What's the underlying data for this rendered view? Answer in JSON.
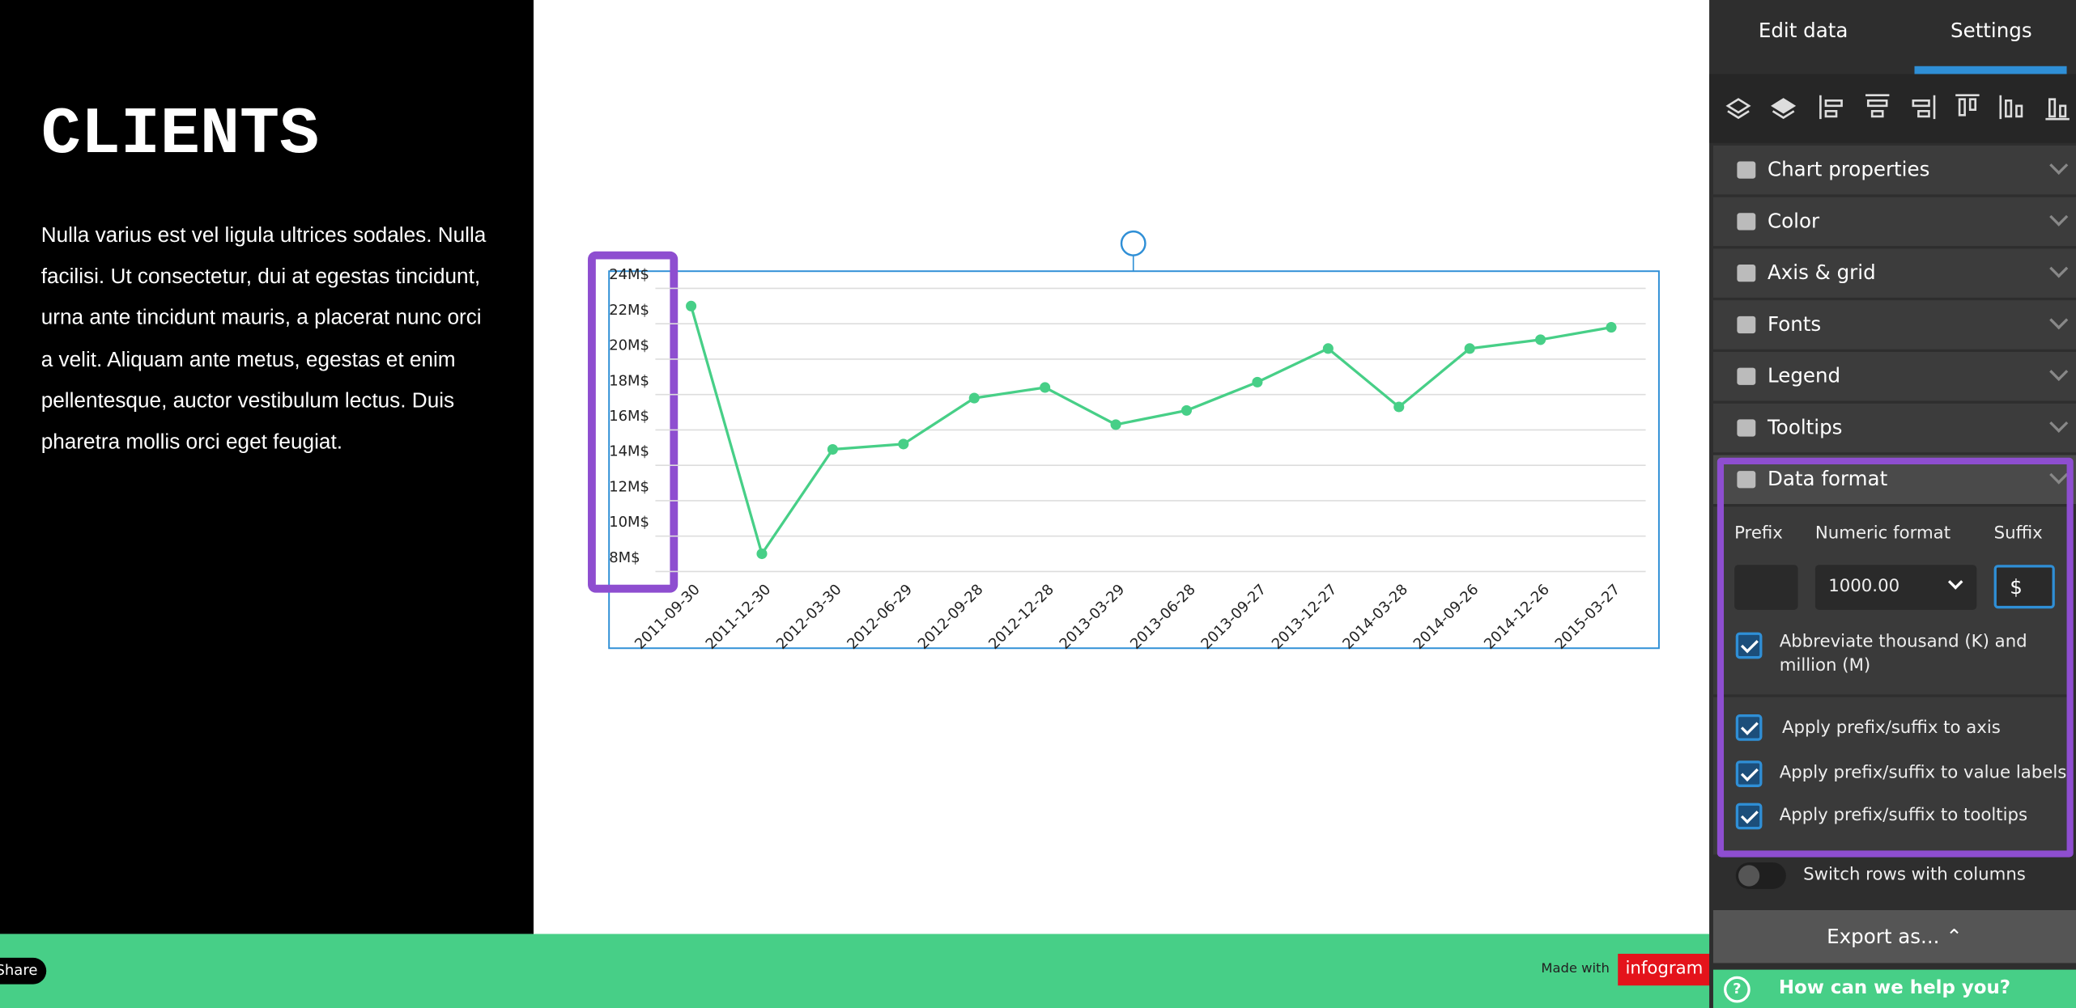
{
  "left_panel": {
    "title": "CLIENTS",
    "body": "Nulla varius est vel ligula ultrices sodales. Nulla facilisi. Ut consectetur, dui at egestas tincidunt, urna ante tincidunt mauris, a placerat nunc orci a velit. Aliquam ante metus, egestas et enim pellentesque, auctor vestibulum lectus. Duis pharetra mollis orci eget feugiat."
  },
  "chart_data": {
    "type": "line",
    "categories": [
      "2011-09-30",
      "2011-12-30",
      "2012-03-30",
      "2012-06-29",
      "2012-09-28",
      "2012-12-28",
      "2013-03-29",
      "2013-06-28",
      "2013-09-27",
      "2013-12-27",
      "2014-03-28",
      "2014-09-26",
      "2014-12-26",
      "2015-03-27"
    ],
    "values": [
      23000000,
      9000000,
      14900000,
      15200000,
      17800000,
      18400000,
      16300000,
      17100000,
      18700000,
      20600000,
      17300000,
      20600000,
      21100000,
      21800000
    ],
    "color": "#47cf87",
    "ylim": [
      8000000,
      24000000
    ],
    "yticks": [
      {
        "value": 24000000,
        "label": "24M$"
      },
      {
        "value": 22000000,
        "label": "22M$"
      },
      {
        "value": 20000000,
        "label": "20M$"
      },
      {
        "value": 18000000,
        "label": "18M$"
      },
      {
        "value": 16000000,
        "label": "16M$"
      },
      {
        "value": 14000000,
        "label": "14M$"
      },
      {
        "value": 12000000,
        "label": "12M$"
      },
      {
        "value": 10000000,
        "label": "10M$"
      },
      {
        "value": 8000000,
        "label": "8M$"
      }
    ],
    "grid": true
  },
  "footer": {
    "share": "Share",
    "made_with": "Made with",
    "brand": "infogram"
  },
  "sidebar": {
    "tabs": [
      "Edit data",
      "Settings"
    ],
    "sections": [
      "Chart properties",
      "Color",
      "Axis & grid",
      "Fonts",
      "Legend",
      "Tooltips",
      "Data format"
    ],
    "data_format": {
      "prefix_label": "Prefix",
      "numeric_label": "Numeric format",
      "suffix_label": "Suffix",
      "numeric_value": "1000.00",
      "suffix_value": "$",
      "abbreviate": "Abbreviate thousand (K) and million (M)",
      "apply_axis": "Apply prefix/suffix to axis",
      "apply_labels": "Apply prefix/suffix to value labels",
      "apply_tooltips": "Apply prefix/suffix to tooltips"
    },
    "switch": "Switch rows with columns",
    "export": "Export as...",
    "help": "How can we help you?"
  }
}
